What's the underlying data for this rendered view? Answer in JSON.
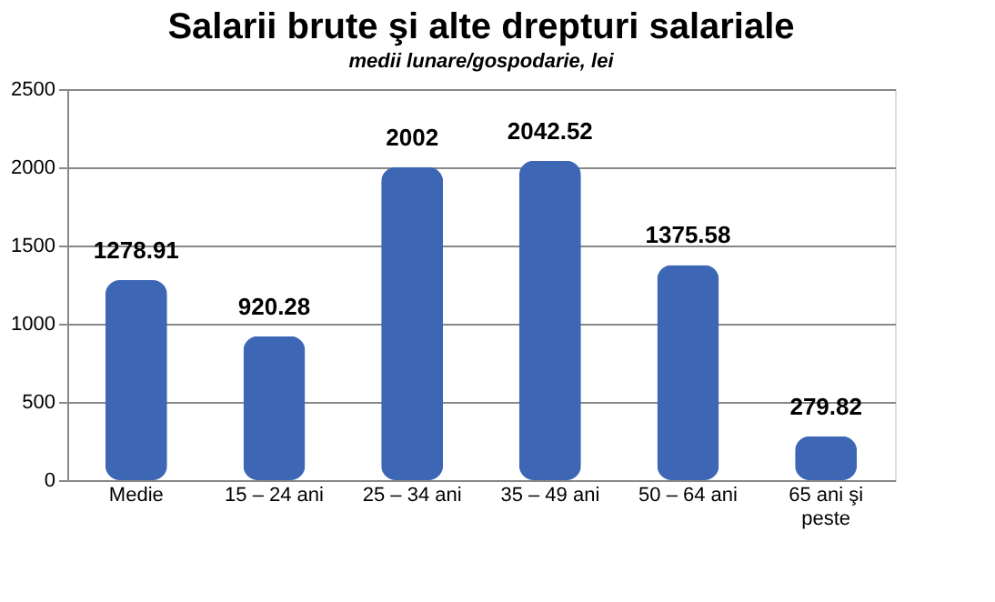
{
  "chart_data": {
    "type": "bar",
    "title": "Salarii brute şi alte drepturi salariale",
    "subtitle": "medii lunare/gospodarie, lei",
    "categories": [
      "Medie",
      "15 – 24 ani",
      "25 – 34 ani",
      "35 – 49 ani",
      "50 – 64 ani",
      "65 ani şi peste"
    ],
    "values": [
      1278.91,
      920.28,
      2002,
      2042.52,
      1375.58,
      279.82
    ],
    "color": "#3d66b5",
    "ylim": [
      0,
      2500
    ],
    "yticks": [
      0,
      500,
      1000,
      1500,
      2000,
      2500
    ],
    "grid": "y",
    "data_labels": true
  }
}
